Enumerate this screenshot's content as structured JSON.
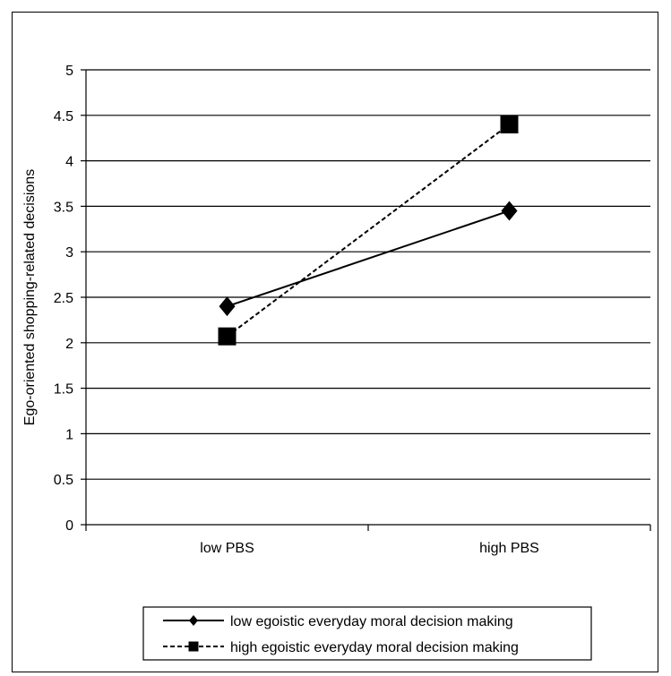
{
  "chart_data": {
    "type": "line",
    "categories": [
      "low PBS",
      "high PBS"
    ],
    "ylabel": "Ego-oriented shopping-related decisions",
    "ylim": [
      0,
      5
    ],
    "yticks": [
      "0",
      "0.5",
      "1",
      "1.5",
      "2",
      "2.5",
      "3",
      "3.5",
      "4",
      "4.5",
      "5"
    ],
    "grid": true,
    "legend_position": "bottom",
    "series": [
      {
        "name": "low egoistic everyday moral decision making",
        "values": [
          2.4,
          3.45
        ],
        "marker": "diamond",
        "line_style": "solid",
        "color": "#000000"
      },
      {
        "name": "high egoistic everyday moral decision making",
        "values": [
          2.07,
          4.4
        ],
        "marker": "square",
        "line_style": "dashed",
        "color": "#000000"
      }
    ]
  }
}
